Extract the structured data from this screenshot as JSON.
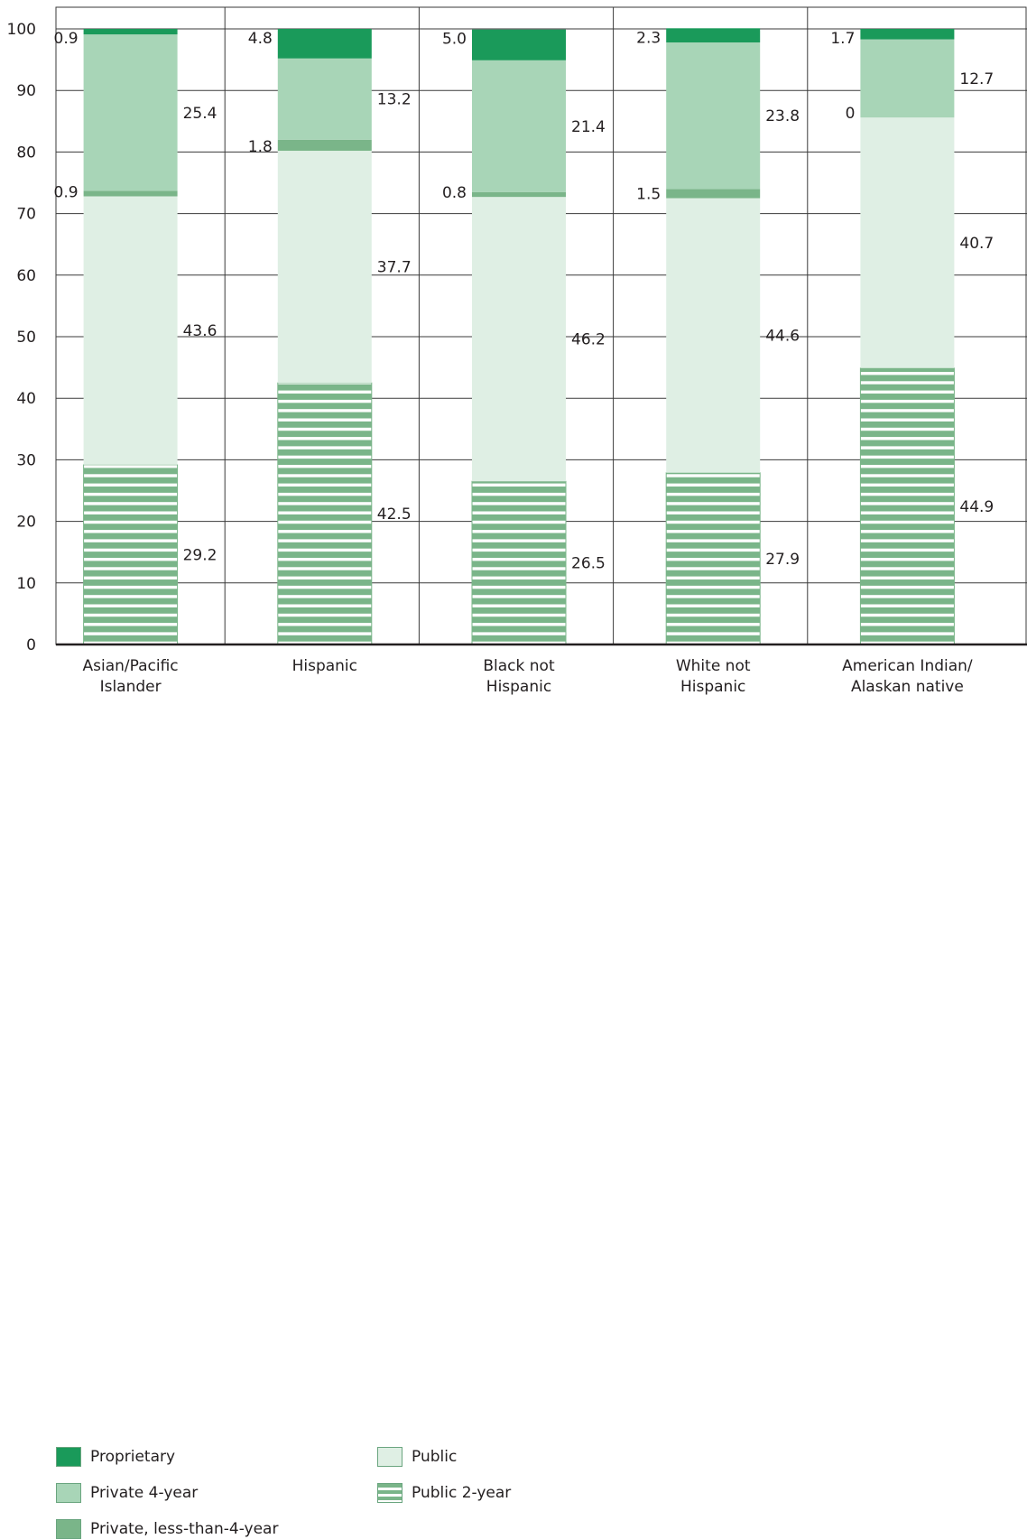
{
  "chart_data": {
    "type": "bar",
    "stacked": true,
    "categories": [
      "Asian/Pacific\nIslander",
      "Hispanic",
      "Black not\nHispanic",
      "White not\nHispanic",
      "American Indian/\nAlaskan native"
    ],
    "series": [
      {
        "name": "Public 2-year",
        "values": [
          29.2,
          42.5,
          26.5,
          27.9,
          44.9
        ]
      },
      {
        "name": "Public",
        "values": [
          43.6,
          37.7,
          46.2,
          44.6,
          40.7
        ]
      },
      {
        "name": "Private, less-than-4-year",
        "values": [
          0.9,
          1.8,
          0.8,
          1.5,
          0
        ]
      },
      {
        "name": "Private 4-year",
        "values": [
          25.4,
          13.2,
          21.4,
          23.8,
          12.7
        ]
      },
      {
        "name": "Proprietary",
        "values": [
          0.9,
          4.8,
          5.0,
          2.3,
          1.7
        ]
      }
    ],
    "ylim": [
      0,
      100
    ],
    "yticks": [
      "0",
      "10",
      "20",
      "30",
      "40",
      "50",
      "60",
      "70",
      "80",
      "90",
      "100"
    ],
    "grid": true,
    "legend_placement": "bottom-left",
    "colors": {
      "Proprietary": "#1a9a5a",
      "Private 4-year": "#a8d5b7",
      "Private, less-than-4-year": "#7ab589",
      "Public": "#dfefe4",
      "Public 2-year": "#7ab589"
    }
  },
  "legend": {
    "items": [
      {
        "label": "Proprietary"
      },
      {
        "label": "Private 4-year"
      },
      {
        "label": "Private, less-than-4-year"
      },
      {
        "label": "Public"
      },
      {
        "label": "Public 2-year"
      }
    ]
  }
}
